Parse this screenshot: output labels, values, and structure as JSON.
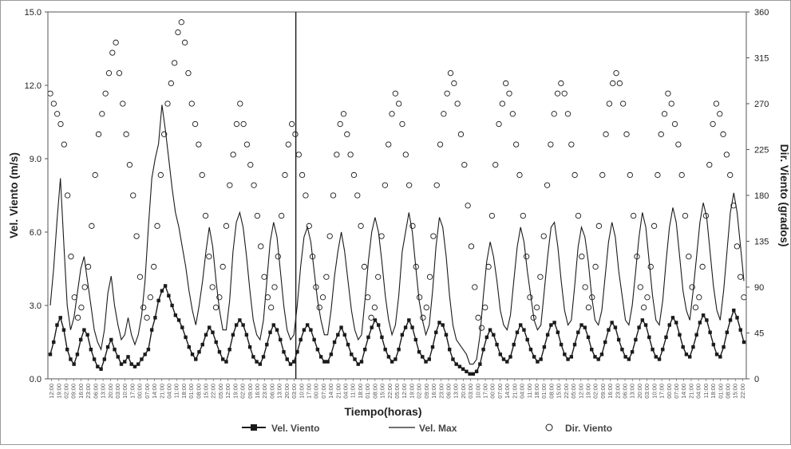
{
  "chart_data": {
    "type": "line",
    "title": "",
    "xlabel": "Tiempo(horas)",
    "ylabel": "Vel. Viento (m/s)",
    "y2label": "Dir. Viento (grados)",
    "ylim": [
      0,
      15
    ],
    "y2lim": [
      0,
      360
    ],
    "y_ticks": [
      "0.0",
      "3.0",
      "6.0",
      "9.0",
      "12.0",
      "15.0"
    ],
    "y2_ticks": [
      "0",
      "45",
      "90",
      "135",
      "180",
      "225",
      "270",
      "315",
      "360"
    ],
    "x_tick_labels": [
      "12:00",
      "19:00",
      "02:00",
      "09:00",
      "16:00",
      "23:00",
      "06:00",
      "13:00",
      "20:00",
      "03:00",
      "10:00",
      "17:00",
      "00:00",
      "07:00",
      "14:00",
      "21:00",
      "04:00",
      "11:00",
      "18:00",
      "01:00",
      "08:00",
      "15:00",
      "22:00",
      "05:00",
      "12:00",
      "19:00",
      "02:00",
      "09:00",
      "16:00",
      "23:00",
      "06:00",
      "13:00",
      "20:00",
      "03:00",
      "10:00",
      "17:00",
      "00:00",
      "07:00",
      "14:00",
      "21:00",
      "04:00",
      "11:00",
      "18:00",
      "01:00",
      "08:00",
      "15:00",
      "22:00",
      "05:00",
      "12:00",
      "19:00",
      "02:00",
      "09:00",
      "16:00",
      "23:00",
      "06:00",
      "13:00",
      "20:00",
      "03:00",
      "10:00",
      "17:00",
      "00:00",
      "07:00",
      "14:00",
      "21:00",
      "04:00",
      "11:00",
      "18:00",
      "01:00",
      "08:00",
      "15:00",
      "22:00",
      "05:00",
      "12:00",
      "19:00",
      "02:00",
      "09:00",
      "16:00",
      "23:00",
      "06:00",
      "13:00",
      "20:00",
      "03:00",
      "10:00",
      "17:00",
      "00:00",
      "07:00",
      "14:00",
      "21:00",
      "04:00",
      "11:00",
      "18:00",
      "01:00",
      "08:00",
      "15:00",
      "22:00"
    ],
    "grid": false,
    "legend_position": "bottom",
    "series": [
      {
        "name": "Vel. Viento",
        "kind": "line-square-markers",
        "axis": "left",
        "values": [
          1.0,
          1.5,
          2.2,
          2.5,
          2.0,
          1.2,
          0.8,
          0.6,
          1.0,
          1.6,
          2.0,
          1.8,
          1.2,
          0.8,
          0.5,
          0.4,
          0.8,
          1.3,
          1.6,
          1.2,
          0.9,
          0.6,
          0.7,
          0.9,
          0.6,
          0.5,
          0.6,
          0.8,
          1.0,
          1.2,
          2.0,
          2.5,
          3.2,
          3.6,
          3.8,
          3.4,
          3.0,
          2.6,
          2.4,
          2.1,
          1.7,
          1.3,
          1.0,
          0.8,
          1.1,
          1.4,
          1.8,
          2.1,
          1.9,
          1.5,
          1.1,
          0.8,
          0.7,
          1.2,
          1.8,
          2.2,
          2.4,
          2.2,
          1.8,
          1.3,
          0.9,
          0.7,
          0.6,
          0.9,
          1.4,
          1.9,
          2.2,
          2.0,
          1.6,
          1.1,
          0.8,
          0.6,
          0.7,
          1.1,
          1.6,
          2.0,
          2.2,
          2.0,
          1.6,
          1.2,
          0.9,
          0.7,
          0.7,
          1.0,
          1.5,
          1.8,
          2.1,
          1.8,
          1.4,
          1.0,
          0.8,
          0.6,
          0.7,
          1.2,
          1.7,
          2.1,
          2.4,
          2.2,
          1.7,
          1.2,
          0.9,
          0.7,
          0.8,
          1.2,
          1.8,
          2.1,
          2.4,
          2.1,
          1.6,
          1.1,
          0.9,
          0.7,
          0.8,
          1.3,
          1.9,
          2.3,
          2.2,
          1.8,
          1.2,
          0.8,
          0.6,
          0.5,
          0.4,
          0.3,
          0.2,
          0.2,
          0.3,
          0.6,
          1.2,
          1.7,
          2.0,
          1.8,
          1.4,
          1.0,
          0.8,
          0.7,
          0.9,
          1.4,
          1.9,
          2.2,
          2.0,
          1.6,
          1.2,
          0.9,
          0.7,
          0.8,
          1.3,
          1.8,
          2.2,
          2.3,
          1.9,
          1.4,
          1.0,
          0.8,
          0.9,
          1.4,
          1.9,
          2.2,
          2.1,
          1.7,
          1.2,
          0.9,
          0.8,
          1.0,
          1.5,
          2.0,
          2.3,
          2.1,
          1.6,
          1.2,
          0.9,
          0.8,
          1.1,
          1.6,
          2.1,
          2.4,
          2.2,
          1.7,
          1.2,
          0.9,
          0.8,
          1.2,
          1.7,
          2.2,
          2.5,
          2.3,
          1.8,
          1.3,
          1.0,
          0.9,
          1.3,
          1.8,
          2.3,
          2.6,
          2.4,
          1.9,
          1.4,
          1.0,
          0.9,
          1.3,
          1.9,
          2.4,
          2.8,
          2.5,
          2.0,
          1.5
        ]
      },
      {
        "name": "Vel. Max",
        "kind": "line",
        "axis": "left",
        "values": [
          3.0,
          4.5,
          6.5,
          8.2,
          5.5,
          3.0,
          2.0,
          2.5,
          3.5,
          4.5,
          5.0,
          4.0,
          3.0,
          2.0,
          1.5,
          1.2,
          2.0,
          3.5,
          4.2,
          3.0,
          2.2,
          1.6,
          1.8,
          2.5,
          1.8,
          1.4,
          1.8,
          2.6,
          4.0,
          6.2,
          8.2,
          9.0,
          9.6,
          11.2,
          10.2,
          9.0,
          7.8,
          6.8,
          6.2,
          5.4,
          4.6,
          3.6,
          2.8,
          2.2,
          3.0,
          4.0,
          5.2,
          6.2,
          5.4,
          4.0,
          2.8,
          2.0,
          2.0,
          3.2,
          5.2,
          6.4,
          6.8,
          6.2,
          5.0,
          3.6,
          2.4,
          1.8,
          1.6,
          2.4,
          4.0,
          5.6,
          6.4,
          5.8,
          4.4,
          3.0,
          2.0,
          1.6,
          1.8,
          3.0,
          4.6,
          5.8,
          6.2,
          5.6,
          4.4,
          3.2,
          2.4,
          1.8,
          1.8,
          2.8,
          4.2,
          5.2,
          6.0,
          5.2,
          4.0,
          2.8,
          2.0,
          1.6,
          1.8,
          3.2,
          4.8,
          6.0,
          6.6,
          6.0,
          4.8,
          3.4,
          2.4,
          1.8,
          2.2,
          3.4,
          5.2,
          6.0,
          6.8,
          6.0,
          4.6,
          3.2,
          2.4,
          1.8,
          2.2,
          3.6,
          5.4,
          6.6,
          6.2,
          5.0,
          3.4,
          2.2,
          1.6,
          1.4,
          1.2,
          1.0,
          0.6,
          0.6,
          0.8,
          1.8,
          3.4,
          4.8,
          5.6,
          5.0,
          4.0,
          2.8,
          2.2,
          2.0,
          2.6,
          4.0,
          5.4,
          6.2,
          5.6,
          4.4,
          3.4,
          2.4,
          2.0,
          2.2,
          3.6,
          5.0,
          6.2,
          6.4,
          5.4,
          4.0,
          2.8,
          2.2,
          2.4,
          3.8,
          5.4,
          6.2,
          5.8,
          4.8,
          3.4,
          2.4,
          2.2,
          2.8,
          4.2,
          5.6,
          6.4,
          5.8,
          4.4,
          3.4,
          2.4,
          2.2,
          3.0,
          4.4,
          5.8,
          6.8,
          6.2,
          4.8,
          3.4,
          2.4,
          2.2,
          3.2,
          4.8,
          6.2,
          7.0,
          6.4,
          5.0,
          3.6,
          2.8,
          2.4,
          3.6,
          5.0,
          6.4,
          7.2,
          6.6,
          5.2,
          3.8,
          2.8,
          2.4,
          3.6,
          5.2,
          6.8,
          7.6,
          6.8,
          5.4,
          4.0
        ]
      },
      {
        "name": "Dir. Viento",
        "kind": "scatter-open-circles",
        "axis": "right",
        "values": [
          280,
          270,
          260,
          250,
          230,
          180,
          120,
          80,
          60,
          70,
          90,
          110,
          150,
          200,
          240,
          260,
          280,
          300,
          320,
          330,
          300,
          270,
          240,
          210,
          180,
          140,
          100,
          70,
          60,
          80,
          110,
          150,
          200,
          240,
          270,
          290,
          310,
          340,
          350,
          330,
          300,
          270,
          250,
          230,
          200,
          160,
          120,
          90,
          70,
          80,
          110,
          150,
          190,
          220,
          250,
          270,
          250,
          230,
          210,
          190,
          160,
          130,
          100,
          80,
          70,
          90,
          120,
          160,
          200,
          230,
          250,
          240,
          220,
          200,
          180,
          150,
          120,
          90,
          70,
          80,
          100,
          140,
          180,
          220,
          250,
          260,
          240,
          220,
          200,
          180,
          150,
          110,
          80,
          60,
          70,
          100,
          140,
          190,
          230,
          260,
          280,
          270,
          250,
          220,
          190,
          150,
          110,
          80,
          60,
          70,
          100,
          140,
          190,
          230,
          260,
          280,
          300,
          290,
          270,
          240,
          210,
          170,
          130,
          90,
          60,
          50,
          70,
          110,
          160,
          210,
          250,
          270,
          290,
          280,
          260,
          230,
          200,
          160,
          120,
          80,
          60,
          70,
          100,
          140,
          190,
          230,
          260,
          280,
          290,
          280,
          260,
          230,
          200,
          160,
          120,
          90,
          70,
          80,
          110,
          150,
          200,
          240,
          270,
          290,
          300,
          290,
          270,
          240,
          200,
          160,
          120,
          90,
          70,
          80,
          110,
          150,
          200,
          240,
          260,
          280,
          270,
          250,
          230,
          200,
          160,
          120,
          90,
          70,
          80,
          110,
          160,
          210,
          250,
          270,
          260,
          240,
          220,
          200,
          170,
          130,
          100,
          80
        ]
      }
    ]
  },
  "legend": {
    "items": [
      {
        "label": "Vel. Viento",
        "symbol": "square-line"
      },
      {
        "label": "Vel. Max",
        "symbol": "line"
      },
      {
        "label": "Dir. Viento",
        "symbol": "open-circle"
      }
    ]
  },
  "colors": {
    "series_line": "#1a1a1a",
    "frame": "#888888",
    "axis": "#555555",
    "text": "#222222",
    "background": "#ffffff"
  }
}
